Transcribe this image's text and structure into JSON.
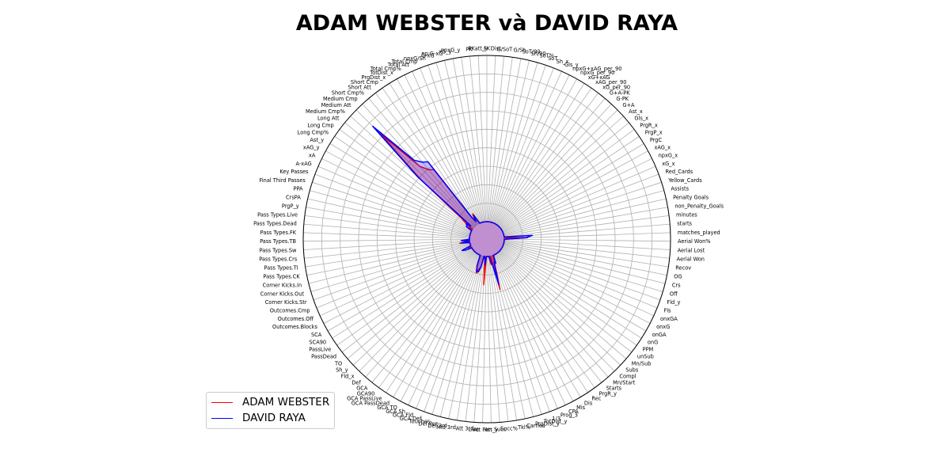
{
  "title": "ADAM WEBSTER và DAVID RAYA",
  "chart_data": {
    "type": "radar",
    "title": "ADAM WEBSTER và DAVID RAYA",
    "rlim": [
      0,
      1
    ],
    "grid": true,
    "legend_placement": "lower-left",
    "axes": [
      "FK",
      "Dist",
      "G/SoT",
      "G/Sh",
      "SoT/90",
      "Sh/90",
      "SoT%",
      "SoT",
      "Sh_x",
      "Gls_y",
      "npxG+xAG_per_90",
      "npxG_per_90",
      "xG+xAG",
      "xAG_per_90",
      "xG_per_90",
      "G+A-PK",
      "G-PK",
      "G+A",
      "Ast_x",
      "Gls_x",
      "PrgR_x",
      "PrgP_x",
      "PrgC",
      "xAG_x",
      "npxG_x",
      "xG_x",
      "Red_Cards",
      "Yellow_Cards",
      "Assists",
      "Penalty Goals",
      "non_Penalty_Goals",
      "minutes",
      "starts",
      "matches_played",
      "Aerial Won%",
      "Aerial Lost",
      "Aerial Won",
      "Recov",
      "OG",
      "Crs",
      "Off",
      "Fld_y",
      "Fls",
      "onxGA",
      "onxG",
      "onGA",
      "onG",
      "PPM",
      "unSub",
      "Mn/Sub",
      "Subs",
      "Compl",
      "Mn/Start",
      "Starts",
      "PrgR_y",
      "Rec",
      "Dis",
      "Mis",
      "CPA",
      "Prog_3",
      "1/3",
      "TotDist_y",
      "PrgDist_y",
      "Carries",
      "Tkl%",
      "Succ%",
      "Succ",
      "Att_y",
      "Att Pen",
      "Live",
      "Att 3rd",
      "Mid 3rd",
      "Def 3rd",
      "Def Pen",
      "Touches",
      "GCA Def",
      "GCA Fld",
      "GCA Sh",
      "GCA TO",
      "GCA PassDead",
      "GCA PassLive",
      "GCA90",
      "GCA",
      "Def",
      "Fld_x",
      "Sh_y",
      "TO",
      "PassDead",
      "PassLive",
      "SCA90",
      "SCA",
      "Outcomes.Blocks",
      "Outcomes.Off",
      "Outcomes.Cmp",
      "Corner Kicks.Str",
      "Corner Kicks.Out",
      "Corner Kicks.In",
      "Pass Types.CK",
      "Pass Types.TI",
      "Pass Types.Crs",
      "Pass Types.Sw",
      "Pass Types.TB",
      "Pass Types.FK",
      "Pass Types.Dead",
      "Pass Types.Live",
      "PrgP_y",
      "CrsPA",
      "PPA",
      "Final Third Passes",
      "Key Passes",
      "A-xAG",
      "xA",
      "xAG_y",
      "Ast_y",
      "Long Cmp%",
      "Long Cmp",
      "Long Att",
      "Medium Cmp%",
      "Medium Att",
      "Medium Cmp",
      "Short Cmp%",
      "Short Att",
      "Short Cmp",
      "PrgDist_x",
      "TotDist_x",
      "Total Cmp%",
      "Total Att",
      "Total Cmp",
      "npxG/Sh",
      "G-xG",
      "np:G-xG",
      "xG_y",
      "npxG_y",
      "PK",
      "PKatt_y"
    ],
    "series": [
      {
        "name": "ADAM WEBSTER",
        "color": "#ff0000",
        "values": [
          0,
          0,
          0,
          0,
          0,
          0,
          0,
          0,
          0,
          0,
          0,
          0,
          0,
          0,
          0,
          0,
          0,
          0,
          0,
          0,
          0,
          0,
          0,
          0,
          0,
          0,
          0,
          0,
          0,
          0,
          0,
          0,
          0,
          0.14,
          0,
          0,
          0,
          0,
          0,
          0,
          0,
          0,
          0,
          0,
          0,
          0,
          0,
          0,
          0,
          0,
          0,
          0,
          0,
          0,
          0,
          0,
          0,
          0,
          0,
          0,
          0,
          0.06,
          0.21,
          0,
          0.05,
          0,
          0,
          0,
          0,
          0.17,
          0,
          0,
          0.07,
          0.08,
          0.11,
          0.07,
          0,
          0,
          0,
          0,
          0,
          0,
          0,
          0,
          0,
          0,
          0,
          0,
          0,
          0,
          0,
          0,
          0.02,
          0,
          0,
          0,
          0,
          0,
          0.06,
          0,
          0,
          0,
          0,
          0,
          0,
          0,
          0,
          0,
          0,
          0,
          0,
          0,
          0,
          0.03,
          0,
          0.05,
          0.09,
          0.43,
          0.8,
          0.49,
          0.44,
          0.42,
          0.05,
          0.03,
          0.07,
          0.03,
          0,
          0,
          0,
          0,
          0,
          0,
          0,
          0,
          0
        ]
      },
      {
        "name": "DAVID RAYA",
        "color": "#0000ff",
        "values": [
          0,
          0,
          0,
          0,
          0,
          0,
          0,
          0,
          0,
          0,
          0,
          0,
          0,
          0,
          0,
          0,
          0,
          0,
          0,
          0,
          0,
          0,
          0,
          0,
          0,
          0,
          0,
          0,
          0,
          0,
          0,
          0,
          0.17,
          0.13,
          0,
          0,
          0,
          0,
          0,
          0,
          0,
          0,
          0,
          0,
          0,
          0,
          0,
          0,
          0,
          0,
          0,
          0,
          0,
          0,
          0,
          0,
          0,
          0,
          0,
          0,
          0.05,
          0.04,
          0.18,
          0.05,
          0.03,
          0,
          0,
          0,
          0,
          0.05,
          0,
          0,
          0.07,
          0.1,
          0.1,
          0.07,
          0,
          0,
          0,
          0,
          0,
          0,
          0,
          0,
          0,
          0,
          0,
          0,
          0,
          0,
          0,
          0.04,
          0.06,
          0,
          0,
          0,
          0,
          0,
          0.05,
          0,
          0.05,
          0,
          0,
          0,
          0,
          0,
          0,
          0,
          0,
          0,
          0,
          0,
          0,
          0.04,
          0.04,
          0.05,
          0.02,
          0.46,
          0.86,
          0.54,
          0.5,
          0.48,
          0.05,
          0.02,
          0.06,
          0.02,
          0,
          0,
          0,
          0,
          0,
          0,
          0,
          0,
          0
        ]
      }
    ]
  }
}
